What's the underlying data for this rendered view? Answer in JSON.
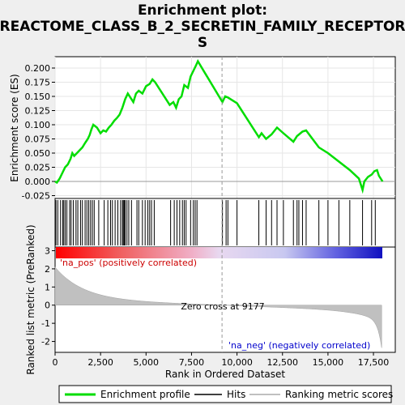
{
  "chart_data": {
    "type": "line",
    "title_line1": "Enrichment plot:",
    "title_line2": "REACTOME_CLASS_B_2_SECRETIN_FAMILY_RECEPTOR",
    "title_line3": "S",
    "es_ylabel": "Enrichment score (ES)",
    "metric_ylabel": "Ranked list metric (PreRanked)",
    "xlabel": "Rank in Ordered Dataset",
    "xlim": [
      0,
      18700
    ],
    "es_ylim": [
      -0.03,
      0.22
    ],
    "metric_ylim": [
      -2.6,
      3.2
    ],
    "x_ticks": [
      0,
      2500,
      5000,
      7500,
      10000,
      12500,
      15000,
      17500
    ],
    "x_tick_labels": [
      "0",
      "2,500",
      "5,000",
      "7,500",
      "10,000",
      "12,500",
      "15,000",
      "17,500"
    ],
    "es_ticks": [
      -0.025,
      0.0,
      0.025,
      0.05,
      0.075,
      0.1,
      0.125,
      0.15,
      0.175,
      0.2
    ],
    "es_tick_labels": [
      "-0.025",
      "0.000",
      "0.025",
      "0.050",
      "0.075",
      "0.100",
      "0.125",
      "0.150",
      "0.175",
      "0.200"
    ],
    "metric_ticks": [
      -2,
      -1,
      0,
      1,
      2,
      3
    ],
    "metric_tick_labels": [
      "-2",
      "-1",
      "0",
      "1",
      "2",
      "3"
    ],
    "zero_cross_rank": 9177,
    "zero_cross_label": "Zero cross at 9177",
    "pos_label": "'na_pos' (positively correlated)",
    "neg_label": "'na_neg' (negatively correlated)",
    "legend": {
      "enrichment": "Enrichment profile",
      "hits": "Hits",
      "metric": "Ranking metric scores"
    },
    "colors": {
      "profile": "#00dd00",
      "pos_label": "#cc0000",
      "neg_label": "#0000cc",
      "metric_fill": "#c0c0c0"
    },
    "es_profile": {
      "x": [
        0,
        100,
        250,
        400,
        550,
        700,
        850,
        950,
        1050,
        1200,
        1350,
        1500,
        1650,
        1800,
        1900,
        2000,
        2100,
        2300,
        2500,
        2650,
        2800,
        2950,
        3100,
        3250,
        3400,
        3550,
        3700,
        3850,
        4000,
        4300,
        4450,
        4600,
        4800,
        5000,
        5200,
        5350,
        5500,
        6300,
        6500,
        6650,
        6800,
        6950,
        7100,
        7300,
        7450,
        7600,
        7750,
        7850,
        9200,
        9350,
        9500,
        10000,
        11200,
        11350,
        11600,
        11900,
        12200,
        12550,
        13100,
        13300,
        13600,
        13800,
        14500,
        15000,
        15600,
        16200,
        16700,
        16900,
        17000,
        17200,
        17400,
        17550,
        17700,
        17800,
        18000
      ],
      "y": [
        0.0,
        -0.002,
        0.005,
        0.015,
        0.025,
        0.03,
        0.04,
        0.05,
        0.045,
        0.05,
        0.055,
        0.06,
        0.068,
        0.075,
        0.082,
        0.092,
        0.1,
        0.095,
        0.085,
        0.09,
        0.088,
        0.095,
        0.1,
        0.107,
        0.112,
        0.118,
        0.13,
        0.145,
        0.155,
        0.14,
        0.155,
        0.16,
        0.155,
        0.168,
        0.172,
        0.18,
        0.175,
        0.135,
        0.14,
        0.13,
        0.145,
        0.15,
        0.17,
        0.165,
        0.185,
        0.195,
        0.205,
        0.212,
        0.14,
        0.15,
        0.148,
        0.138,
        0.078,
        0.085,
        0.075,
        0.083,
        0.095,
        0.085,
        0.07,
        0.08,
        0.088,
        0.09,
        0.06,
        0.05,
        0.035,
        0.02,
        0.005,
        -0.015,
        0.0,
        0.008,
        0.012,
        0.018,
        0.02,
        0.01,
        0.0
      ]
    },
    "hits": [
      50,
      150,
      300,
      420,
      480,
      560,
      650,
      800,
      880,
      1000,
      1150,
      1250,
      1400,
      1500,
      1650,
      1750,
      1850,
      1950,
      2050,
      2150,
      2400,
      2700,
      2900,
      3050,
      3150,
      3300,
      3450,
      3600,
      3700,
      3750,
      3800,
      3850,
      3950,
      4050,
      4200,
      4500,
      4600,
      4800,
      4950,
      5100,
      5200,
      5300,
      5450,
      6350,
      6550,
      6700,
      6850,
      7000,
      7100,
      7200,
      7450,
      7600,
      7700,
      7800,
      9200,
      9400,
      9500,
      10000,
      11200,
      11600,
      11900,
      12200,
      12550,
      13100,
      13300,
      13400,
      13600,
      13800,
      14500,
      15000,
      15600,
      16200,
      16900,
      17400,
      17600
    ]
  }
}
